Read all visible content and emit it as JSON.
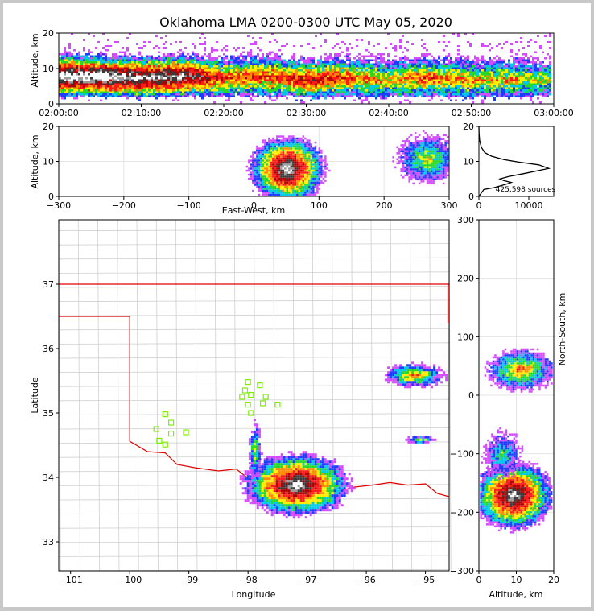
{
  "chart_data": [
    {
      "type": "heatmap",
      "name": "altitude-time",
      "title": "Oklahoma LMA 0200-0300 UTC May 05, 2020",
      "xlabel": "",
      "ylabel": "Altitude, km",
      "xlim": [
        0,
        60
      ],
      "ylim": [
        0,
        20
      ],
      "x_ticks": [
        0,
        10,
        20,
        30,
        40,
        50,
        60
      ],
      "x_tick_labels": [
        "02:00:00",
        "02:10:00",
        "02:20:00",
        "02:30:00",
        "02:40:00",
        "02:50:00",
        "03:00:00"
      ],
      "y_ticks": [
        0,
        10,
        20
      ],
      "y_tick_labels": [
        "0",
        "10",
        "20"
      ],
      "band_center_km": [
        8,
        8,
        7.5,
        8,
        7.5,
        8,
        7,
        7.5,
        7,
        7.5,
        7,
        7,
        7
      ],
      "core_intensity": [
        1.0,
        1.0,
        0.9,
        0.9,
        0.6,
        0.6,
        0.7,
        0.6,
        0.5,
        0.6,
        0.5,
        0.5,
        0.4
      ]
    },
    {
      "type": "heatmap",
      "name": "east-west-altitude",
      "xlabel": "East-West, km",
      "ylabel": "Altitude, km",
      "xlim": [
        -300,
        300
      ],
      "ylim": [
        0,
        20
      ],
      "x_ticks": [
        -300,
        -200,
        -100,
        0,
        100,
        200,
        300
      ],
      "x_tick_labels": [
        "−300",
        "−200",
        "−100",
        "0",
        "100",
        "200",
        "300"
      ],
      "y_ticks": [
        0,
        10,
        20
      ],
      "y_tick_labels": [
        "0",
        "10",
        "20"
      ],
      "cells": [
        {
          "x": 50,
          "y": 8,
          "rx": 55,
          "ry": 9,
          "v": 1.0
        },
        {
          "x": 265,
          "y": 11,
          "rx": 45,
          "ry": 7,
          "v": 0.5
        }
      ]
    },
    {
      "type": "line",
      "name": "altitude-histogram",
      "xlabel": "",
      "ylabel": "",
      "xlim": [
        0,
        15000
      ],
      "ylim": [
        0,
        20
      ],
      "x_ticks": [
        0,
        10000
      ],
      "x_tick_labels": [
        "0",
        "10000"
      ],
      "y_ticks": [
        0,
        10,
        20
      ],
      "y_tick_labels": [
        "0",
        "10",
        "20"
      ],
      "annotation": "425,598 sources",
      "x": [
        0,
        1000,
        3000,
        5500,
        6500,
        5000,
        4200,
        6000,
        9000,
        14000,
        12000,
        8000,
        5000,
        2500,
        1200,
        500,
        150,
        30,
        0
      ],
      "y": [
        0,
        2,
        2.5,
        3.5,
        4,
        4.5,
        5,
        5.7,
        6.5,
        8,
        9,
        9.8,
        10.5,
        11.5,
        12.5,
        14,
        16,
        18,
        20
      ]
    },
    {
      "type": "heatmap",
      "name": "plan-view-map",
      "xlabel": "Longitude",
      "ylabel": "Latitude",
      "xlim": [
        -101.2,
        -94.6
      ],
      "ylim": [
        32.55,
        38.0
      ],
      "x_ticks": [
        -101,
        -100,
        -99,
        -98,
        -97,
        -96,
        -95
      ],
      "x_tick_labels": [
        "−101",
        "−100",
        "−99",
        "−98",
        "−97",
        "−96",
        "−95"
      ],
      "y_ticks": [
        33,
        34,
        35,
        36,
        37
      ],
      "y_tick_labels": [
        "33",
        "34",
        "35",
        "36",
        "37"
      ],
      "cells": [
        {
          "x": -97.2,
          "y": 33.9,
          "rx": 0.85,
          "ry": 0.45,
          "v": 1.0
        },
        {
          "x": -97.9,
          "y": 34.4,
          "rx": 0.1,
          "ry": 0.45,
          "v": 0.5
        },
        {
          "x": -95.2,
          "y": 35.6,
          "rx": 0.5,
          "ry": 0.18,
          "v": 0.6
        },
        {
          "x": -95.1,
          "y": 34.6,
          "rx": 0.25,
          "ry": 0.06,
          "v": 0.5
        }
      ],
      "stations": [
        [
          -99.4,
          34.98
        ],
        [
          -99.3,
          34.85
        ],
        [
          -99.55,
          34.75
        ],
        [
          -99.3,
          34.68
        ],
        [
          -99.5,
          34.57
        ],
        [
          -99.4,
          34.51
        ],
        [
          -99.05,
          34.7
        ],
        [
          -98.0,
          35.48
        ],
        [
          -98.05,
          35.35
        ],
        [
          -98.1,
          35.25
        ],
        [
          -97.95,
          35.28
        ],
        [
          -97.8,
          35.43
        ],
        [
          -97.7,
          35.25
        ],
        [
          -97.75,
          35.15
        ],
        [
          -97.5,
          35.13
        ],
        [
          -98.0,
          35.13
        ],
        [
          -97.95,
          35.0
        ]
      ]
    },
    {
      "type": "heatmap",
      "name": "north-south-altitude",
      "xlabel": "Altitude, km",
      "ylabel": "North-South, km",
      "xlim": [
        0,
        20
      ],
      "ylim": [
        -300,
        300
      ],
      "x_ticks": [
        0,
        10,
        20
      ],
      "x_tick_labels": [
        "0",
        "10",
        "20"
      ],
      "y_ticks": [
        -300,
        -200,
        -100,
        0,
        100,
        200,
        300
      ],
      "y_tick_labels": [
        "−300",
        "−200",
        "−100",
        "0",
        "100",
        "200",
        "300"
      ],
      "cells": [
        {
          "x": 9,
          "y": -170,
          "rx": 10,
          "ry": 55,
          "v": 1.0
        },
        {
          "x": 11,
          "y": 45,
          "rx": 9,
          "ry": 35,
          "v": 0.6
        },
        {
          "x": 6,
          "y": -100,
          "rx": 5,
          "ry": 40,
          "v": 0.4
        }
      ]
    }
  ]
}
